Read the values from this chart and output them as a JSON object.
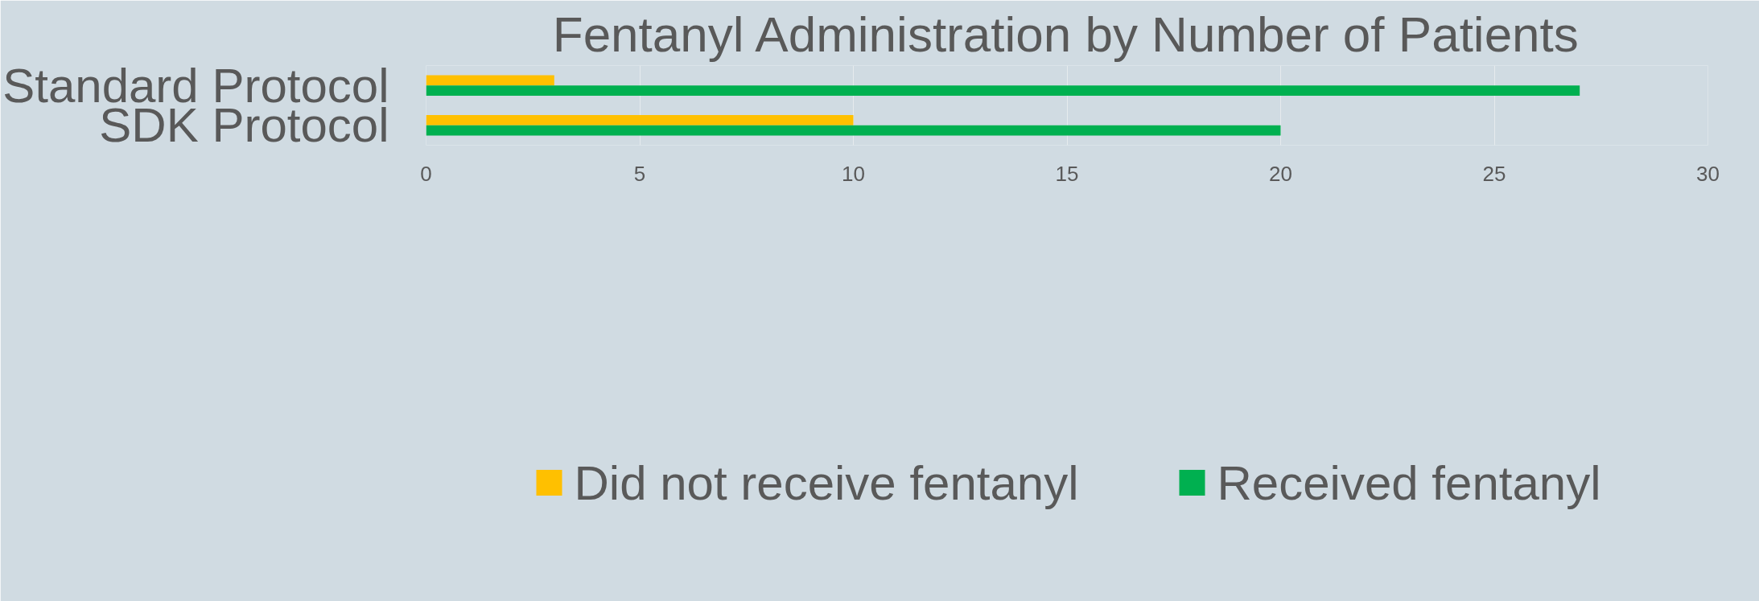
{
  "chart_data": {
    "type": "bar",
    "orientation": "horizontal",
    "title": "Fentanyl Administration by Number of Patients",
    "categories": [
      "Standard Protocol",
      "SDK Protocol"
    ],
    "series": [
      {
        "name": "Did not receive fentanyl",
        "color": "#ffc000",
        "values": [
          3,
          10
        ]
      },
      {
        "name": "Received fentanyl",
        "color": "#00b050",
        "values": [
          27,
          20
        ]
      }
    ],
    "xlim": [
      0,
      30
    ],
    "xticks": [
      0,
      5,
      10,
      15,
      20,
      25,
      30
    ],
    "grid": "x",
    "legend": "bottom"
  }
}
